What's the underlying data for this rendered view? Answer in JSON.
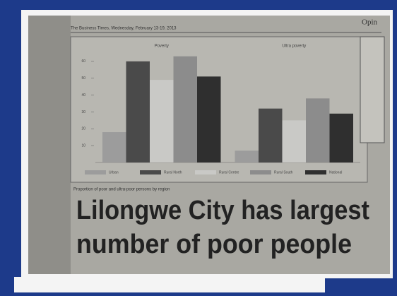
{
  "page": {
    "masthead": "The Business Times, Wednesday, February 13-19, 2013",
    "section": "Opin",
    "caption": "Proportion of poor and ultra-poor persons by region",
    "headline": [
      "Lilongwe City has largest",
      "number of poor people"
    ]
  },
  "chart_data": {
    "type": "bar",
    "categories": [
      "Poverty",
      "Ultra poverty"
    ],
    "series": [
      {
        "name": "Urban",
        "color": "#9c9c9c",
        "values": [
          18,
          7
        ]
      },
      {
        "name": "Rural North",
        "color": "#4a4a4a",
        "values": [
          60,
          32
        ]
      },
      {
        "name": "Rural Centre",
        "color": "#c9c9c6",
        "values": [
          49,
          25
        ]
      },
      {
        "name": "Rural South",
        "color": "#8c8c8c",
        "values": [
          63,
          38
        ]
      },
      {
        "name": "National",
        "color": "#2f2f2f",
        "values": [
          51,
          29
        ]
      }
    ],
    "ylim": [
      0,
      70
    ],
    "yticks": [
      10,
      20,
      30,
      40,
      50,
      60
    ],
    "legend": "bottom"
  }
}
